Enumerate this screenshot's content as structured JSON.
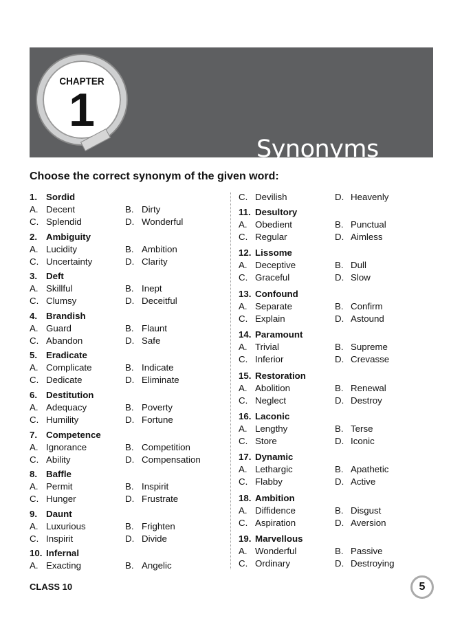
{
  "header": {
    "chapter_label": "CHAPTER",
    "chapter_number": "1",
    "title": "Synonyms"
  },
  "instruction": "Choose the correct synonym of the given word:",
  "left_column": [
    {
      "n": "1.",
      "word": "Sordid",
      "A": "Decent",
      "B": "Dirty",
      "C": "Splendid",
      "D": "Wonderful"
    },
    {
      "n": "2.",
      "word": "Ambiguity",
      "A": "Lucidity",
      "B": "Ambition",
      "C": "Uncertainty",
      "D": "Clarity"
    },
    {
      "n": "3.",
      "word": "Deft",
      "A": "Skillful",
      "B": "Inept",
      "C": "Clumsy",
      "D": "Deceitful"
    },
    {
      "n": "4.",
      "word": "Brandish",
      "A": "Guard",
      "B": "Flaunt",
      "C": "Abandon",
      "D": "Safe"
    },
    {
      "n": "5.",
      "word": "Eradicate",
      "A": "Complicate",
      "B": "Indicate",
      "C": "Dedicate",
      "D": "Eliminate"
    },
    {
      "n": "6.",
      "word": "Destitution",
      "A": "Adequacy",
      "B": "Poverty",
      "C": "Humility",
      "D": "Fortune"
    },
    {
      "n": "7.",
      "word": "Competence",
      "A": "Ignorance",
      "B": "Competition",
      "C": "Ability",
      "D": "Compensation"
    },
    {
      "n": "8.",
      "word": "Baffle",
      "A": "Permit",
      "B": "Inspirit",
      "C": "Hunger",
      "D": "Frustrate"
    },
    {
      "n": "9.",
      "word": "Daunt",
      "A": "Luxurious",
      "B": "Frighten",
      "C": "Inspirit",
      "D": "Divide"
    },
    {
      "n": "10.",
      "word": "Infernal",
      "A": "Exacting",
      "B": "Angelic"
    }
  ],
  "right_continuation": {
    "C": "Devilish",
    "D": "Heavenly"
  },
  "right_column": [
    {
      "n": "11.",
      "word": "Desultory",
      "A": "Obedient",
      "B": "Punctual",
      "C": "Regular",
      "D": "Aimless"
    },
    {
      "n": "12.",
      "word": "Lissome",
      "A": "Deceptive",
      "B": "Dull",
      "C": "Graceful",
      "D": "Slow"
    },
    {
      "n": "13.",
      "word": "Confound",
      "A": "Separate",
      "B": "Confirm",
      "C": "Explain",
      "D": "Astound"
    },
    {
      "n": "14.",
      "word": "Paramount",
      "A": "Trivial",
      "B": "Supreme",
      "C": "Inferior",
      "D": "Crevasse"
    },
    {
      "n": "15.",
      "word": "Restoration",
      "A": "Abolition",
      "B": "Renewal",
      "C": "Neglect",
      "D": "Destroy"
    },
    {
      "n": "16.",
      "word": "Laconic",
      "A": "Lengthy",
      "B": "Terse",
      "C": "Store",
      "D": "Iconic"
    },
    {
      "n": "17.",
      "word": "Dynamic",
      "A": "Lethargic",
      "B": "Apathetic",
      "C": "Flabby",
      "D": "Active"
    },
    {
      "n": "18.",
      "word": "Ambition",
      "A": "Diffidence",
      "B": "Disgust",
      "C": "Aspiration",
      "D": "Aversion"
    },
    {
      "n": "19.",
      "word": "Marvellous",
      "A": "Wonderful",
      "B": "Passive",
      "C": "Ordinary",
      "D": "Destroying"
    }
  ],
  "option_letters": {
    "A": "A.",
    "B": "B.",
    "C": "C.",
    "D": "D."
  },
  "footer": {
    "class_label": "CLASS 10",
    "page_number": "5"
  }
}
